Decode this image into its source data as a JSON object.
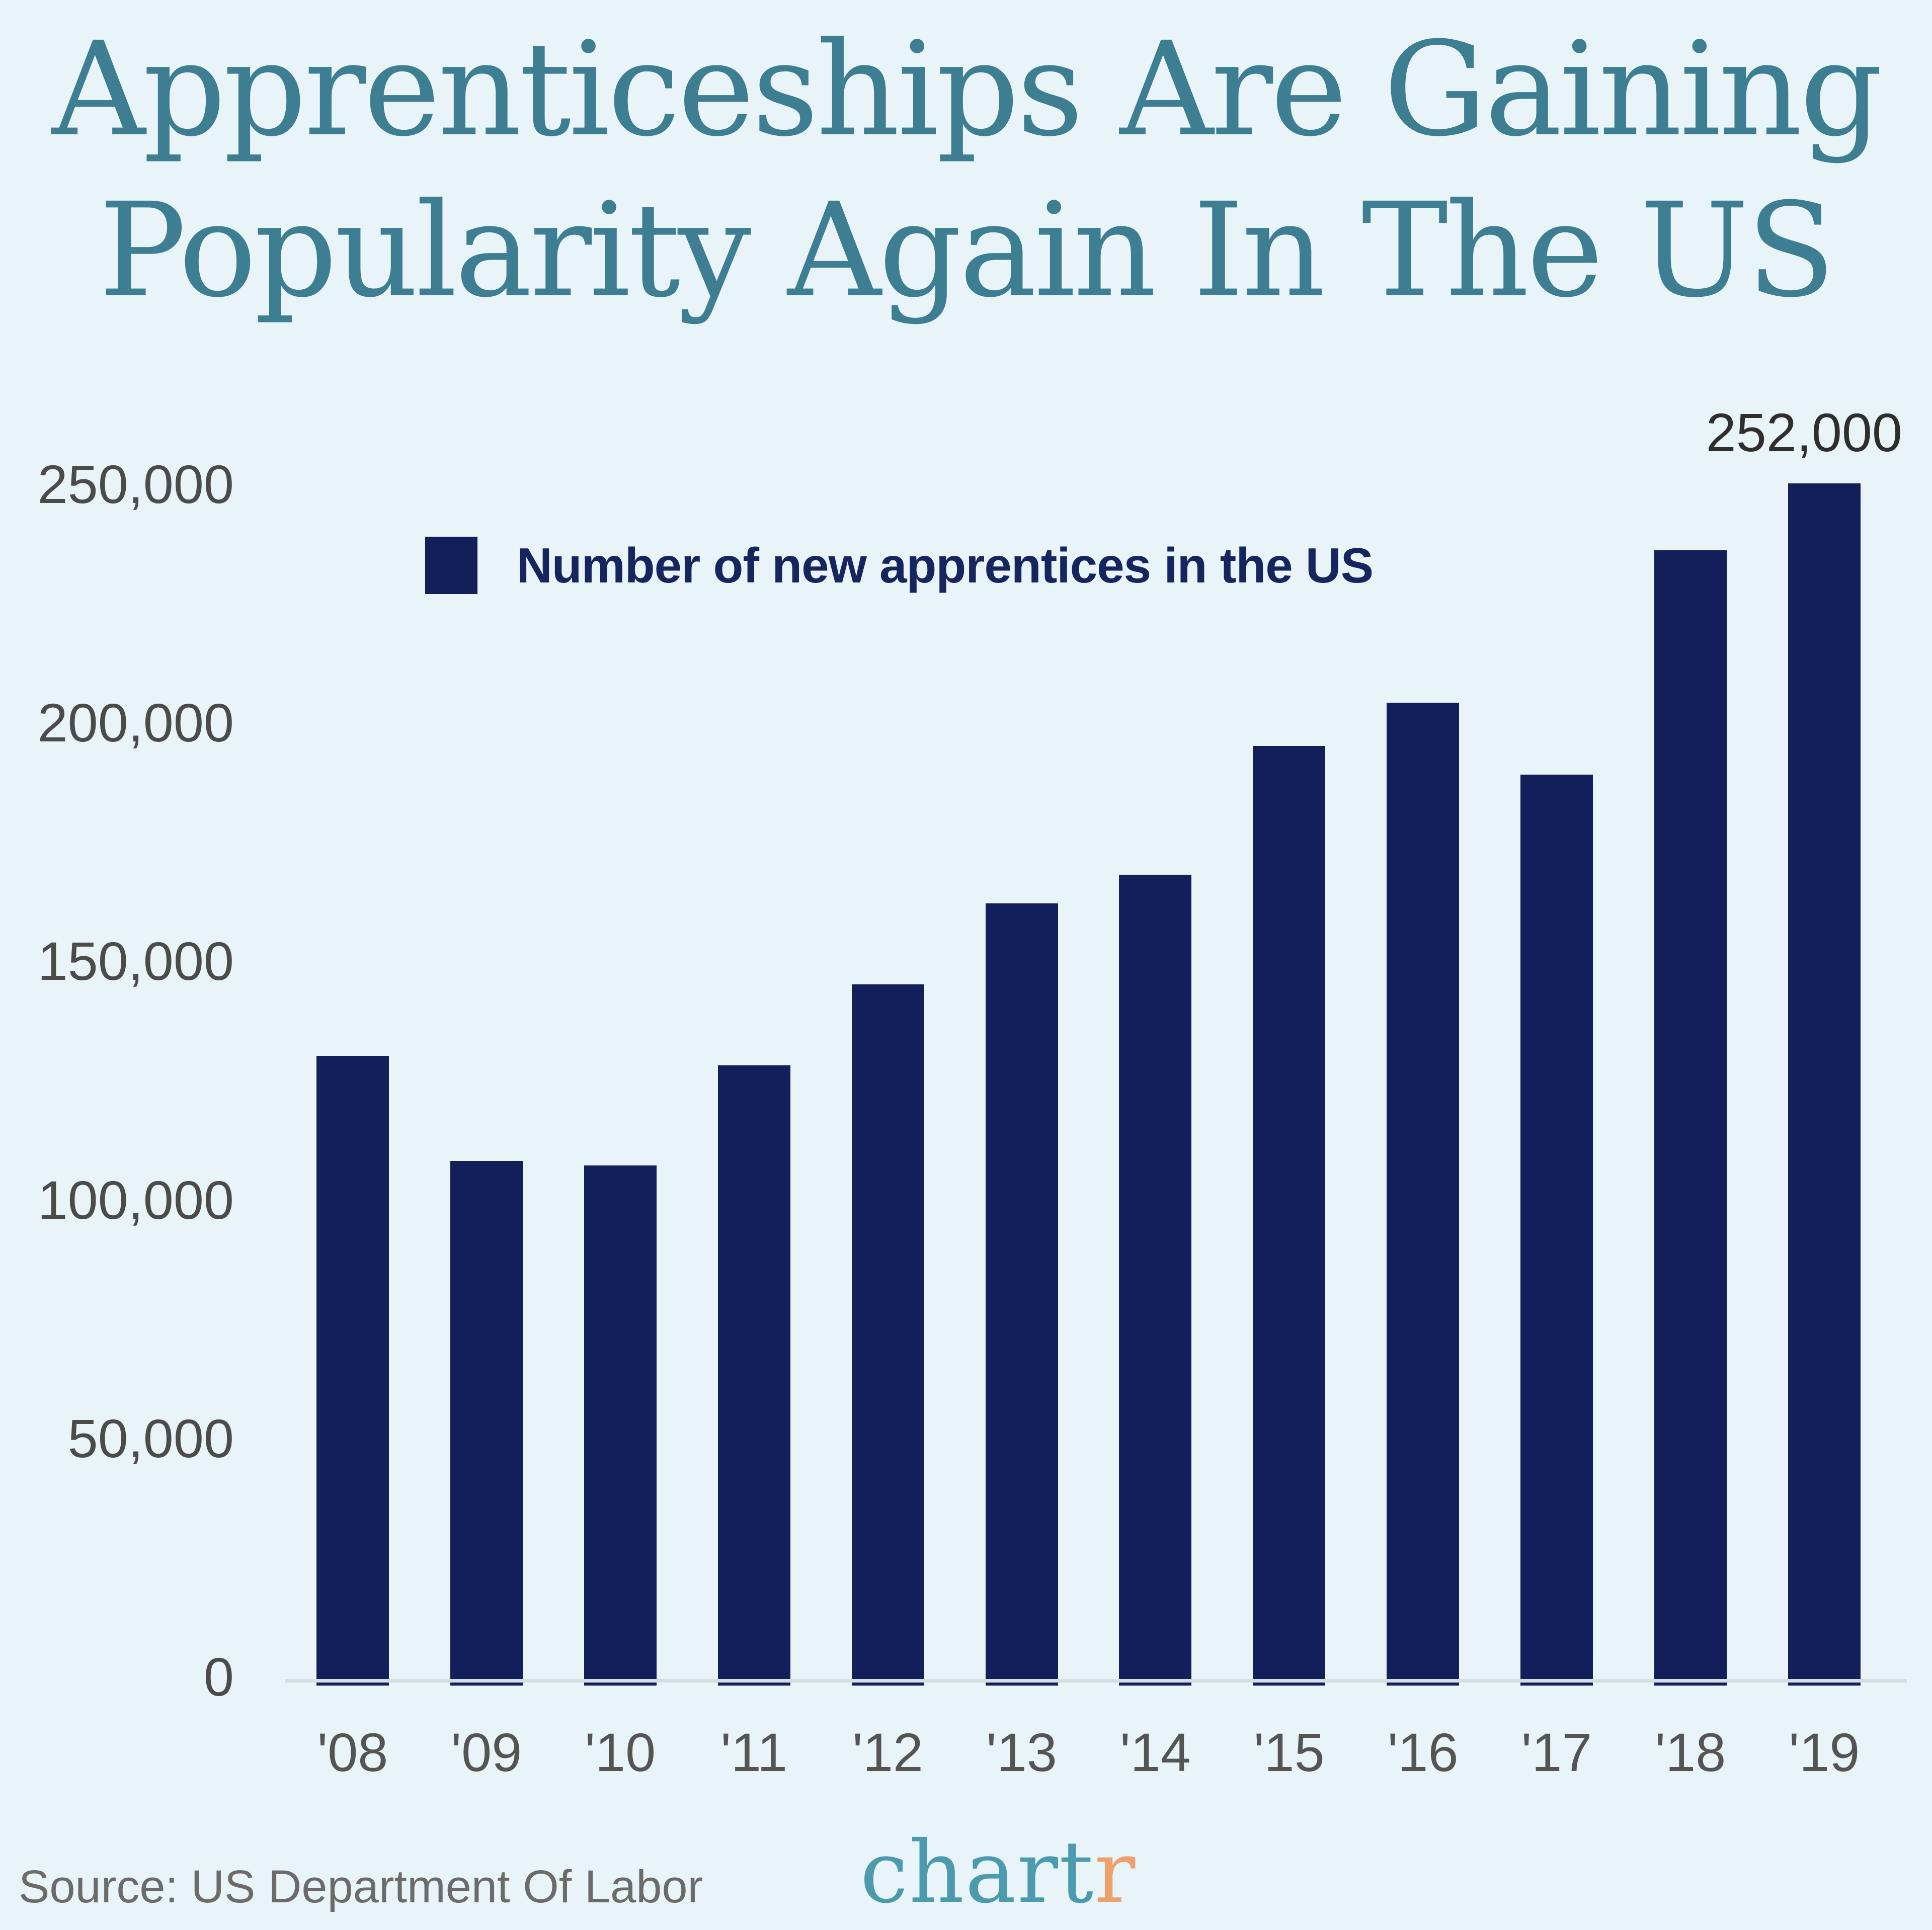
{
  "title": {
    "line1": "Apprenticeships Are Gaining",
    "line2": "Popularity Again In The US"
  },
  "legend": {
    "label": "Number of new apprentices in the US"
  },
  "annotation": {
    "value": "252,000"
  },
  "source": {
    "text": "Source: US Department Of Labor"
  },
  "logo": {
    "part1": "chart",
    "part2": "r"
  },
  "colors": {
    "background": "#e9f4f8",
    "title_teal": "#3e7e92",
    "bar_navy": "#131f5b",
    "legend_text_navy": "#17255f",
    "tick_label_gray": "#4b4b4b",
    "annotation_gray": "#2e2e2e",
    "source_gray": "#6b6b6b",
    "axis_line": "#d6dde1",
    "logo_teal": "#4b9aae",
    "logo_orange": "#eda06b"
  },
  "chart_data": {
    "type": "bar",
    "title": "Apprenticeships Are Gaining Popularity Again In The US",
    "categories": [
      "'08",
      "'09",
      "'10",
      "'11",
      "'12",
      "'13",
      "'14",
      "'15",
      "'16",
      "'17",
      "'18",
      "'19"
    ],
    "values": [
      132000,
      110000,
      109000,
      130000,
      147000,
      164000,
      170000,
      197000,
      206000,
      191000,
      238000,
      252000
    ],
    "series_label": "Number of new apprentices in the US",
    "xlabel": "",
    "ylabel": "",
    "ylim": [
      0,
      260000
    ],
    "y_ticks": [
      0,
      50000,
      100000,
      150000,
      200000,
      250000
    ],
    "y_tick_labels": [
      "0",
      "50,000",
      "100,000",
      "150,000",
      "200,000",
      "250,000"
    ],
    "grid": false,
    "legend_position": "inside-top-left",
    "annotations": [
      {
        "category": "'19",
        "text": "252,000",
        "position": "above-bar"
      }
    ],
    "source": "Source: US Department Of Labor",
    "brand": "chartr"
  }
}
